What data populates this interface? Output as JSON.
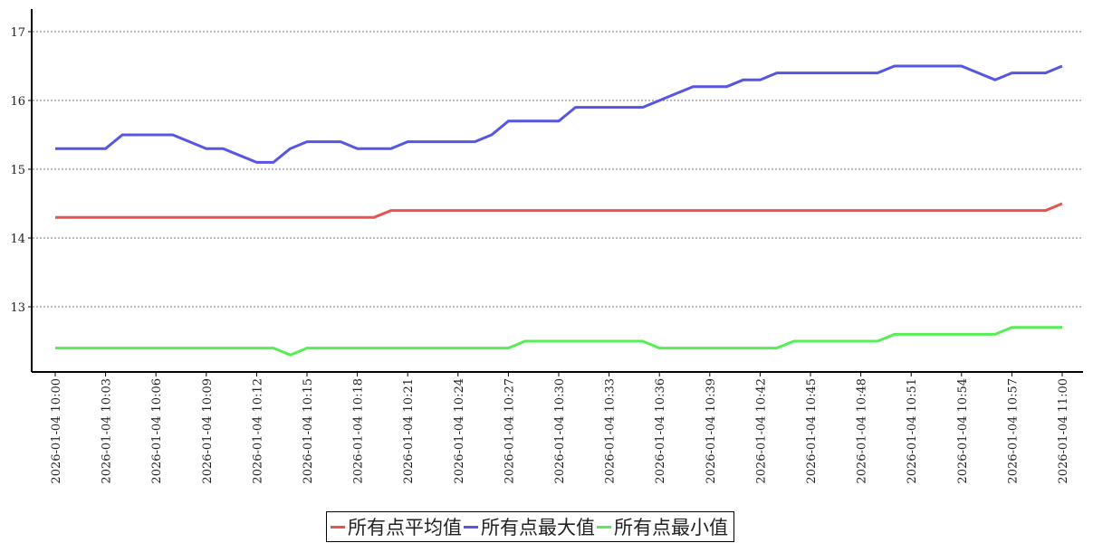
{
  "chart_data": {
    "type": "line",
    "title": "",
    "xlabel": "",
    "ylabel": "",
    "ylim": [
      12.05,
      17.33
    ],
    "yticks": [
      13,
      14,
      15,
      16,
      17
    ],
    "grid": "horizontal dotted",
    "legend_position": "bottom-center",
    "x": [
      "2026-01-04 10:00",
      "2026-01-04 10:01",
      "2026-01-04 10:02",
      "2026-01-04 10:03",
      "2026-01-04 10:04",
      "2026-01-04 10:05",
      "2026-01-04 10:06",
      "2026-01-04 10:07",
      "2026-01-04 10:08",
      "2026-01-04 10:09",
      "2026-01-04 10:10",
      "2026-01-04 10:11",
      "2026-01-04 10:12",
      "2026-01-04 10:13",
      "2026-01-04 10:14",
      "2026-01-04 10:15",
      "2026-01-04 10:16",
      "2026-01-04 10:17",
      "2026-01-04 10:18",
      "2026-01-04 10:19",
      "2026-01-04 10:20",
      "2026-01-04 10:21",
      "2026-01-04 10:22",
      "2026-01-04 10:23",
      "2026-01-04 10:24",
      "2026-01-04 10:25",
      "2026-01-04 10:26",
      "2026-01-04 10:27",
      "2026-01-04 10:28",
      "2026-01-04 10:29",
      "2026-01-04 10:30",
      "2026-01-04 10:31",
      "2026-01-04 10:32",
      "2026-01-04 10:33",
      "2026-01-04 10:34",
      "2026-01-04 10:35",
      "2026-01-04 10:36",
      "2026-01-04 10:37",
      "2026-01-04 10:38",
      "2026-01-04 10:39",
      "2026-01-04 10:40",
      "2026-01-04 10:41",
      "2026-01-04 10:42",
      "2026-01-04 10:43",
      "2026-01-04 10:44",
      "2026-01-04 10:45",
      "2026-01-04 10:46",
      "2026-01-04 10:47",
      "2026-01-04 10:48",
      "2026-01-04 10:49",
      "2026-01-04 10:50",
      "2026-01-04 10:51",
      "2026-01-04 10:52",
      "2026-01-04 10:53",
      "2026-01-04 10:54",
      "2026-01-04 10:55",
      "2026-01-04 10:56",
      "2026-01-04 10:57",
      "2026-01-04 10:58",
      "2026-01-04 10:59",
      "2026-01-04 11:00"
    ],
    "xtick_every": 3,
    "series": [
      {
        "name": "所有点平均值",
        "color": "#e8524f",
        "values": [
          14.3,
          14.3,
          14.3,
          14.3,
          14.3,
          14.3,
          14.3,
          14.3,
          14.3,
          14.3,
          14.3,
          14.3,
          14.3,
          14.3,
          14.3,
          14.3,
          14.3,
          14.3,
          14.3,
          14.3,
          14.4,
          14.4,
          14.4,
          14.4,
          14.4,
          14.4,
          14.4,
          14.4,
          14.4,
          14.4,
          14.4,
          14.4,
          14.4,
          14.4,
          14.4,
          14.4,
          14.4,
          14.4,
          14.4,
          14.4,
          14.4,
          14.4,
          14.4,
          14.4,
          14.4,
          14.4,
          14.4,
          14.4,
          14.4,
          14.4,
          14.4,
          14.4,
          14.4,
          14.4,
          14.4,
          14.4,
          14.4,
          14.4,
          14.4,
          14.4,
          14.5
        ]
      },
      {
        "name": "所有点最大值",
        "color": "#5555e6",
        "values": [
          15.3,
          15.3,
          15.3,
          15.3,
          15.5,
          15.5,
          15.5,
          15.5,
          15.4,
          15.3,
          15.3,
          15.2,
          15.1,
          15.1,
          15.3,
          15.4,
          15.4,
          15.4,
          15.3,
          15.3,
          15.3,
          15.4,
          15.4,
          15.4,
          15.4,
          15.4,
          15.5,
          15.7,
          15.7,
          15.7,
          15.7,
          15.9,
          15.9,
          15.9,
          15.9,
          15.9,
          16.0,
          16.1,
          16.2,
          16.2,
          16.2,
          16.3,
          16.3,
          16.4,
          16.4,
          16.4,
          16.4,
          16.4,
          16.4,
          16.4,
          16.5,
          16.5,
          16.5,
          16.5,
          16.5,
          16.4,
          16.3,
          16.4,
          16.4,
          16.4,
          16.5
        ]
      },
      {
        "name": "所有点最小值",
        "color": "#55ee55",
        "values": [
          12.4,
          12.4,
          12.4,
          12.4,
          12.4,
          12.4,
          12.4,
          12.4,
          12.4,
          12.4,
          12.4,
          12.4,
          12.4,
          12.4,
          12.3,
          12.4,
          12.4,
          12.4,
          12.4,
          12.4,
          12.4,
          12.4,
          12.4,
          12.4,
          12.4,
          12.4,
          12.4,
          12.4,
          12.5,
          12.5,
          12.5,
          12.5,
          12.5,
          12.5,
          12.5,
          12.5,
          12.4,
          12.4,
          12.4,
          12.4,
          12.4,
          12.4,
          12.4,
          12.4,
          12.5,
          12.5,
          12.5,
          12.5,
          12.5,
          12.5,
          12.6,
          12.6,
          12.6,
          12.6,
          12.6,
          12.6,
          12.6,
          12.7,
          12.7,
          12.7,
          12.7
        ]
      }
    ]
  }
}
